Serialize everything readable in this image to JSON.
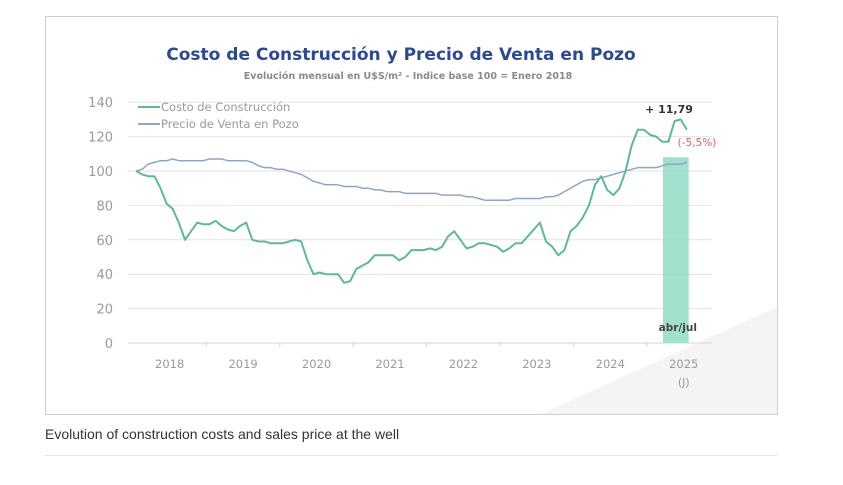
{
  "caption": "Evolution of construction costs and sales price at the well",
  "chart_data": {
    "type": "line",
    "title": "Costo de Construcción y Precio de Venta en Pozo",
    "subtitle": "Evolución mensual en U$S/m² - Indice base 100 = Enero 2018",
    "xlabel": "",
    "ylabel": "",
    "ylim": [
      0,
      140
    ],
    "yticks": [
      0,
      20,
      40,
      60,
      80,
      100,
      120,
      140
    ],
    "xticks": [
      "2018",
      "2019",
      "2020",
      "2021",
      "2022",
      "2023",
      "2024",
      "2025"
    ],
    "xtick_sublabel_2025": "(J)",
    "x_start": "2018-01",
    "x_end": "2025-07",
    "grid": true,
    "legend_position": "top-left",
    "series": [
      {
        "name": "Costo de Construcción",
        "color": "#5fb898",
        "values": [
          100,
          98,
          97,
          97,
          90,
          81,
          78,
          70,
          60,
          65,
          70,
          69,
          69,
          71,
          68,
          66,
          65,
          68,
          70,
          60,
          59,
          59,
          58,
          58,
          58,
          59,
          60,
          59,
          48,
          40,
          41,
          40,
          40,
          40,
          35,
          36,
          43,
          45,
          47,
          51,
          51,
          51,
          51,
          48,
          50,
          54,
          54,
          54,
          55,
          54,
          56,
          62,
          65,
          60,
          55,
          56,
          58,
          58,
          57,
          56,
          53,
          55,
          58,
          58,
          62,
          66,
          70,
          59,
          56,
          51,
          54,
          65,
          68,
          73,
          80,
          92,
          97,
          89,
          86,
          90,
          100,
          115,
          124,
          124,
          121,
          120,
          117,
          117,
          129,
          130,
          124
        ]
      },
      {
        "name": "Precio de Venta en Pozo",
        "color": "#8fa6c4",
        "values": [
          100,
          101,
          104,
          105,
          106,
          106,
          107,
          106,
          106,
          106,
          106,
          106,
          107,
          107,
          107,
          106,
          106,
          106,
          106,
          105,
          103,
          102,
          102,
          101,
          101,
          100,
          99,
          98,
          96,
          94,
          93,
          92,
          92,
          92,
          91,
          91,
          91,
          90,
          90,
          89,
          89,
          88,
          88,
          88,
          87,
          87,
          87,
          87,
          87,
          87,
          86,
          86,
          86,
          86,
          85,
          85,
          84,
          83,
          83,
          83,
          83,
          83,
          84,
          84,
          84,
          84,
          84,
          85,
          85,
          86,
          88,
          90,
          92,
          94,
          95,
          95,
          96,
          97,
          98,
          99,
          100,
          101,
          102,
          102,
          102,
          102,
          103,
          104,
          104,
          104,
          105
        ]
      }
    ],
    "highlight": {
      "label": "abr/jul",
      "from": "2025-04",
      "to": "2025-07",
      "color": "#8fdcc4",
      "top_value": 108
    },
    "annotations": [
      {
        "text": "+ 11,79",
        "color": "#333333"
      },
      {
        "text": "(-5,5%)",
        "color": "#d9606a"
      }
    ]
  }
}
